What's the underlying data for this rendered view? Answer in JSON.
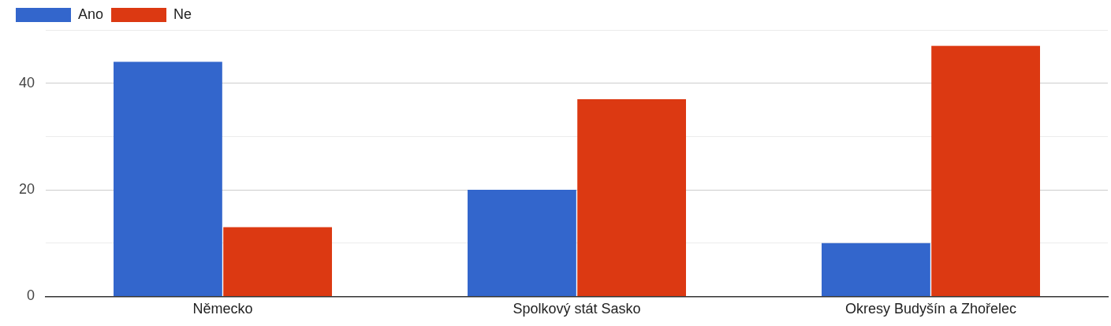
{
  "chart_data": {
    "type": "bar",
    "categories": [
      "Německo",
      "Spolkový stát Sasko",
      "Okresy Budyšín a Zhořelec"
    ],
    "series": [
      {
        "name": "Ano",
        "color": "#3366cc",
        "values": [
          44,
          20,
          10
        ]
      },
      {
        "name": "Ne",
        "color": "#dc3912",
        "values": [
          13,
          37,
          47
        ]
      }
    ],
    "ylim": [
      0,
      50
    ],
    "yticks": [
      0,
      {
        "value": 10,
        "label": null
      },
      20,
      {
        "value": 30,
        "label": null
      },
      40,
      {
        "value": 50,
        "label": null
      }
    ],
    "grid": "y",
    "legend": "top left"
  }
}
